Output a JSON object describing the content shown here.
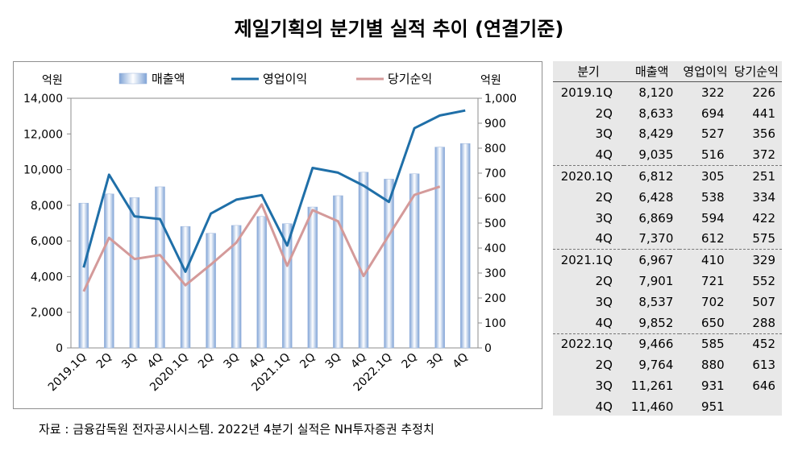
{
  "title": "제일기획의 분기별 실적 추이 (연결기준)",
  "source": "자료 : 금융감독원 전자공시시스템. 2022년 4분기 실적은 NH투자증권 추정치",
  "colors": {
    "revenue": "#b8cce8",
    "operating": "#1f6fa8",
    "net": "#d49a9a"
  },
  "table": {
    "headers": [
      "분기",
      "매출액",
      "영업이익",
      "당기순익"
    ],
    "rows": [
      [
        "2019.1Q",
        "8,120",
        "322",
        "226"
      ],
      [
        "2Q",
        "8,633",
        "694",
        "441"
      ],
      [
        "3Q",
        "8,429",
        "527",
        "356"
      ],
      [
        "4Q",
        "9,035",
        "516",
        "372"
      ],
      [
        "2020.1Q",
        "6,812",
        "305",
        "251"
      ],
      [
        "2Q",
        "6,428",
        "538",
        "334"
      ],
      [
        "3Q",
        "6,869",
        "594",
        "422"
      ],
      [
        "4Q",
        "7,370",
        "612",
        "575"
      ],
      [
        "2021.1Q",
        "6,967",
        "410",
        "329"
      ],
      [
        "2Q",
        "7,901",
        "721",
        "552"
      ],
      [
        "3Q",
        "8,537",
        "702",
        "507"
      ],
      [
        "4Q",
        "9,852",
        "650",
        "288"
      ],
      [
        "2022.1Q",
        "9,466",
        "585",
        "452"
      ],
      [
        "2Q",
        "9,764",
        "880",
        "613"
      ],
      [
        "3Q",
        "11,261",
        "931",
        "646"
      ],
      [
        "4Q",
        "11,460",
        "951",
        ""
      ]
    ]
  },
  "chart_data": {
    "type": "bar",
    "categories": [
      "2019.1Q",
      "2Q",
      "3Q",
      "4Q",
      "2020.1Q",
      "2Q",
      "3Q",
      "4Q",
      "2021.1Q",
      "2Q",
      "3Q",
      "4Q",
      "2022.1Q",
      "2Q",
      "3Q",
      "4Q"
    ],
    "series": [
      {
        "name": "매출액",
        "type": "bar",
        "axis": "left",
        "values": [
          8120,
          8633,
          8429,
          9035,
          6812,
          6428,
          6869,
          7370,
          6967,
          7901,
          8537,
          9852,
          9466,
          9764,
          11261,
          11460
        ]
      },
      {
        "name": "영업이익",
        "type": "line",
        "axis": "right",
        "values": [
          322,
          694,
          527,
          516,
          305,
          538,
          594,
          612,
          410,
          721,
          702,
          650,
          585,
          880,
          931,
          951
        ]
      },
      {
        "name": "당기순익",
        "type": "line",
        "axis": "right",
        "values": [
          226,
          441,
          356,
          372,
          251,
          334,
          422,
          575,
          329,
          552,
          507,
          288,
          452,
          613,
          646,
          null
        ]
      }
    ],
    "y_left": {
      "label": "억원",
      "lim": [
        0,
        14000
      ],
      "ticks": [
        0,
        2000,
        4000,
        6000,
        8000,
        10000,
        12000,
        14000
      ],
      "tick_labels": [
        "0",
        "2,000",
        "4,000",
        "6,000",
        "8,000",
        "10,000",
        "12,000",
        "14,000"
      ]
    },
    "y_right": {
      "label": "억원",
      "lim": [
        0,
        1000
      ],
      "ticks": [
        0,
        100,
        200,
        300,
        400,
        500,
        600,
        700,
        800,
        900,
        1000
      ],
      "tick_labels": [
        "0",
        "100",
        "200",
        "300",
        "400",
        "500",
        "600",
        "700",
        "800",
        "900",
        "1,000"
      ]
    },
    "legend": "top",
    "grid": false
  }
}
